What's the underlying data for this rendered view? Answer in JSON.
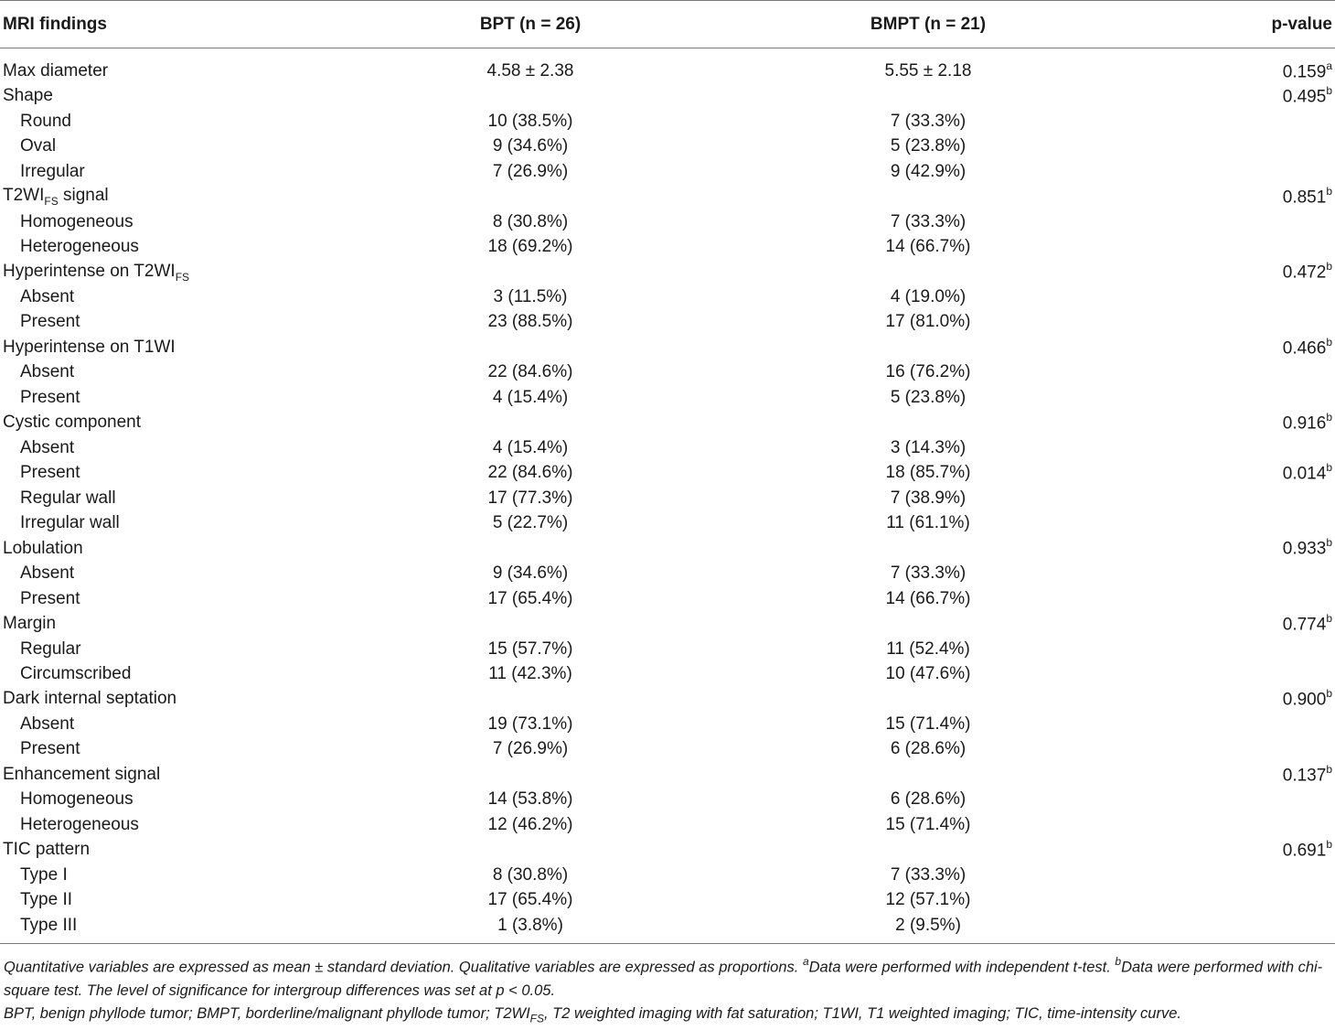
{
  "headers": {
    "col1": "MRI findings",
    "col2": "BPT (n = 26)",
    "col3": "BMPT (n = 21)",
    "col4": "p-value"
  },
  "rows": [
    {
      "label": "Max diameter",
      "sub": false,
      "bpt": "4.58 ± 2.38",
      "bmpt": "5.55 ± 2.18",
      "p": "0.159",
      "psup": "a"
    },
    {
      "label": "Shape",
      "sub": false,
      "bpt": "",
      "bmpt": "",
      "p": "0.495",
      "psup": "b"
    },
    {
      "label": "Round",
      "sub": true,
      "bpt": "10 (38.5%)",
      "bmpt": "7 (33.3%)",
      "p": "",
      "psup": ""
    },
    {
      "label": "Oval",
      "sub": true,
      "bpt": "9 (34.6%)",
      "bmpt": "5 (23.8%)",
      "p": "",
      "psup": ""
    },
    {
      "label": "Irregular",
      "sub": true,
      "bpt": "7 (26.9%)",
      "bmpt": "9 (42.9%)",
      "p": "",
      "psup": ""
    },
    {
      "label": "T2WI",
      "labelsub": "FS",
      "labelafter": " signal",
      "sub": false,
      "bpt": "",
      "bmpt": "",
      "p": "0.851",
      "psup": "b"
    },
    {
      "label": "Homogeneous",
      "sub": true,
      "bpt": "8 (30.8%)",
      "bmpt": "7 (33.3%)",
      "p": "",
      "psup": ""
    },
    {
      "label": "Heterogeneous",
      "sub": true,
      "bpt": "18 (69.2%)",
      "bmpt": "14 (66.7%)",
      "p": "",
      "psup": ""
    },
    {
      "label": "Hyperintense on T2WI",
      "labelsub": "FS",
      "sub": false,
      "bpt": "",
      "bmpt": "",
      "p": "0.472",
      "psup": "b"
    },
    {
      "label": "Absent",
      "sub": true,
      "bpt": "3 (11.5%)",
      "bmpt": "4 (19.0%)",
      "p": "",
      "psup": ""
    },
    {
      "label": "Present",
      "sub": true,
      "bpt": "23 (88.5%)",
      "bmpt": "17 (81.0%)",
      "p": "",
      "psup": ""
    },
    {
      "label": "Hyperintense on T1WI",
      "sub": false,
      "bpt": "",
      "bmpt": "",
      "p": "0.466",
      "psup": "b"
    },
    {
      "label": "Absent",
      "sub": true,
      "bpt": "22 (84.6%)",
      "bmpt": "16 (76.2%)",
      "p": "",
      "psup": ""
    },
    {
      "label": "Present",
      "sub": true,
      "bpt": "4 (15.4%)",
      "bmpt": "5 (23.8%)",
      "p": "",
      "psup": ""
    },
    {
      "label": "Cystic component",
      "sub": false,
      "bpt": "",
      "bmpt": "",
      "p": "0.916",
      "psup": "b"
    },
    {
      "label": "Absent",
      "sub": true,
      "bpt": "4 (15.4%)",
      "bmpt": "3 (14.3%)",
      "p": "",
      "psup": ""
    },
    {
      "label": "Present",
      "sub": true,
      "bpt": "22 (84.6%)",
      "bmpt": "18 (85.7%)",
      "p": "0.014",
      "psup": "b"
    },
    {
      "label": "Regular wall",
      "sub": true,
      "bpt": "17 (77.3%)",
      "bmpt": "7 (38.9%)",
      "p": "",
      "psup": ""
    },
    {
      "label": "Irregular wall",
      "sub": true,
      "bpt": "5 (22.7%)",
      "bmpt": "11 (61.1%)",
      "p": "",
      "psup": ""
    },
    {
      "label": "Lobulation",
      "sub": false,
      "bpt": "",
      "bmpt": "",
      "p": "0.933",
      "psup": "b"
    },
    {
      "label": "Absent",
      "sub": true,
      "bpt": "9 (34.6%)",
      "bmpt": "7 (33.3%)",
      "p": "",
      "psup": ""
    },
    {
      "label": "Present",
      "sub": true,
      "bpt": "17 (65.4%)",
      "bmpt": "14 (66.7%)",
      "p": "",
      "psup": ""
    },
    {
      "label": "Margin",
      "sub": false,
      "bpt": "",
      "bmpt": "",
      "p": "0.774",
      "psup": "b"
    },
    {
      "label": "Regular",
      "sub": true,
      "bpt": "15 (57.7%)",
      "bmpt": "11 (52.4%)",
      "p": "",
      "psup": ""
    },
    {
      "label": "Circumscribed",
      "sub": true,
      "bpt": "11 (42.3%)",
      "bmpt": "10 (47.6%)",
      "p": "",
      "psup": ""
    },
    {
      "label": "Dark internal septation",
      "sub": false,
      "bpt": "",
      "bmpt": "",
      "p": "0.900",
      "psup": "b"
    },
    {
      "label": "Absent",
      "sub": true,
      "bpt": "19 (73.1%)",
      "bmpt": "15 (71.4%)",
      "p": "",
      "psup": ""
    },
    {
      "label": "Present",
      "sub": true,
      "bpt": "7 (26.9%)",
      "bmpt": "6 (28.6%)",
      "p": "",
      "psup": ""
    },
    {
      "label": "Enhancement signal",
      "sub": false,
      "bpt": "",
      "bmpt": "",
      "p": "0.137",
      "psup": "b"
    },
    {
      "label": "Homogeneous",
      "sub": true,
      "bpt": "14 (53.8%)",
      "bmpt": "6 (28.6%)",
      "p": "",
      "psup": ""
    },
    {
      "label": "Heterogeneous",
      "sub": true,
      "bpt": "12 (46.2%)",
      "bmpt": "15 (71.4%)",
      "p": "",
      "psup": ""
    },
    {
      "label": "TIC pattern",
      "sub": false,
      "bpt": "",
      "bmpt": "",
      "p": "0.691",
      "psup": "b"
    },
    {
      "label": "Type I",
      "sub": true,
      "bpt": "8 (30.8%)",
      "bmpt": "7 (33.3%)",
      "p": "",
      "psup": ""
    },
    {
      "label": "Type II",
      "sub": true,
      "bpt": "17 (65.4%)",
      "bmpt": "12 (57.1%)",
      "p": "",
      "psup": ""
    },
    {
      "label": "Type III",
      "sub": true,
      "bpt": "1 (3.8%)",
      "bmpt": "2 (9.5%)",
      "p": "",
      "psup": ""
    }
  ],
  "footnote": {
    "line1_a": "Quantitative variables are expressed as mean ± standard deviation. Qualitative variables are expressed as proportions. ",
    "sup_a": "a",
    "line1_b": "Data were performed with independent t-test. ",
    "sup_b": "b",
    "line1_c": "Data were performed with chi-square test. The level of significance for intergroup differences was set at p < 0.05.",
    "line2_a": "BPT, benign phyllode tumor; BMPT, borderline/malignant phyllode tumor; T2WI",
    "line2_sub": "FS",
    "line2_b": ", T2 weighted imaging with fat saturation; T1WI, T1 weighted imaging; TIC, time-intensity curve."
  }
}
